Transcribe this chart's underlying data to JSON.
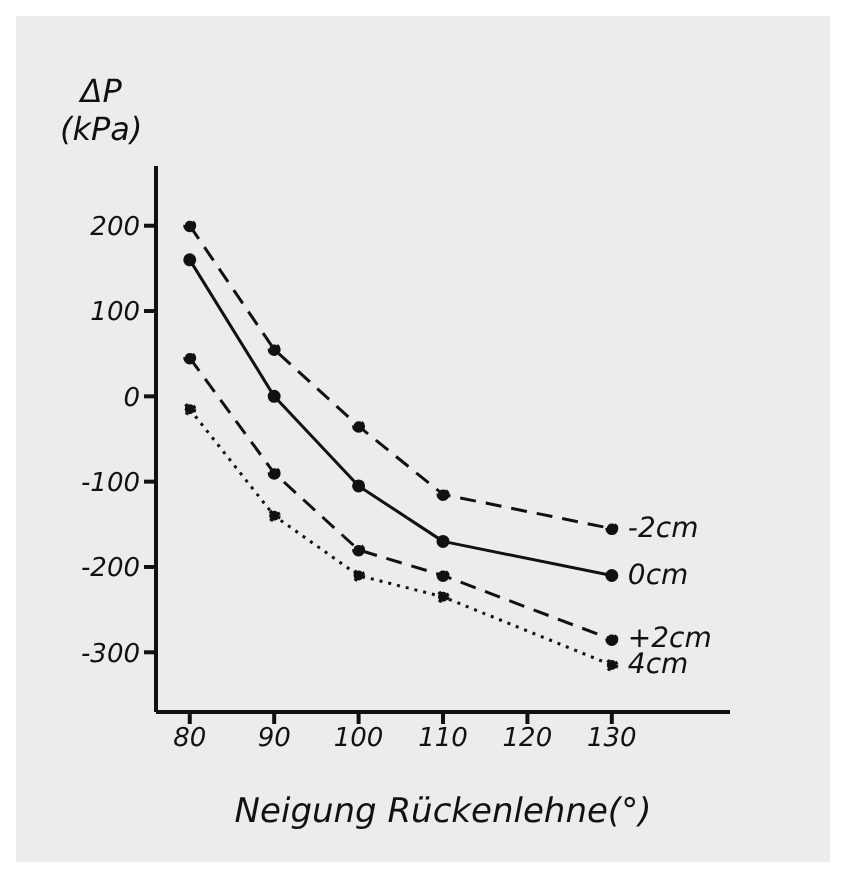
{
  "chart_data": {
    "type": "line",
    "xlabel": "Neigung Rückenlehne(°)",
    "ylabel": "ΔP (kPa)",
    "x": [
      80,
      90,
      100,
      110,
      130
    ],
    "series": [
      {
        "name": "-2cm",
        "color": "#111111",
        "line_style": "dashed",
        "values": [
          200,
          55,
          -35,
          -115,
          -155
        ]
      },
      {
        "name": "0cm",
        "color": "#111111",
        "line_style": "solid",
        "values": [
          160,
          0,
          -105,
          -170,
          -210
        ]
      },
      {
        "name": "+2cm",
        "color": "#111111",
        "line_style": "dashed",
        "values": [
          45,
          -90,
          -180,
          -210,
          -285
        ]
      },
      {
        "name": "4cm",
        "color": "#111111",
        "line_style": "dotted",
        "values": [
          -15,
          -140,
          -210,
          -235,
          -315
        ]
      }
    ],
    "xlim": [
      76,
      144
    ],
    "xticks": [
      80,
      90,
      100,
      110,
      120,
      130
    ],
    "ylim": [
      -370,
      270
    ],
    "yticks": [
      -300,
      -200,
      -100,
      0,
      100,
      200
    ],
    "marker": "circle",
    "grid": false,
    "legend": false
  }
}
